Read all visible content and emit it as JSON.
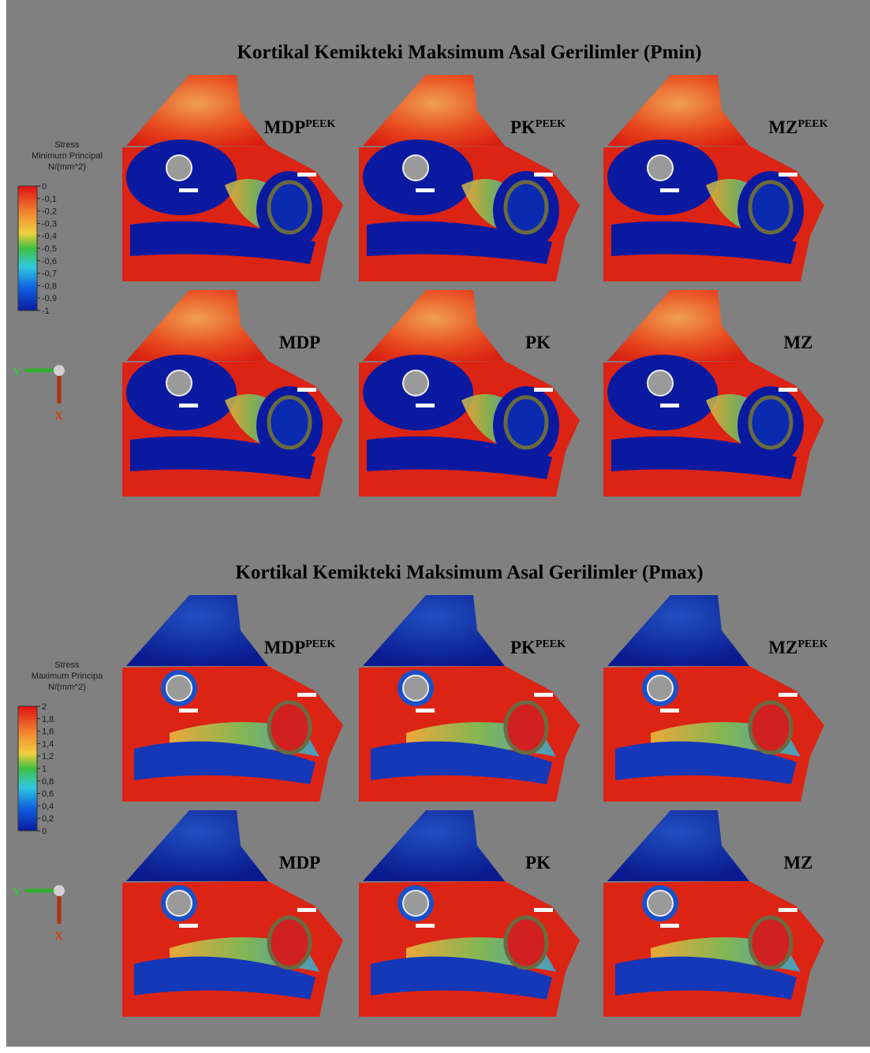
{
  "panels": [
    {
      "title": "Kortikal Kemikteki Maksimum Asal Gerilimler (Pmin)",
      "legend": {
        "title": [
          "Stress",
          "Minimum Principal",
          "N/(mm^2)"
        ],
        "ticks": [
          "0",
          "-0,1",
          "-0,2",
          "-0,3",
          "-0,4",
          "-0,5",
          "-0,6",
          "-0,7",
          "-0,8",
          "-0,9",
          "-1"
        ]
      },
      "axes": {
        "y": "Y",
        "x": "X"
      },
      "models": [
        {
          "name": "MDP",
          "sup": "PEEK"
        },
        {
          "name": "PK",
          "sup": "PEEK"
        },
        {
          "name": "MZ",
          "sup": "PEEK"
        },
        {
          "name": "MDP"
        },
        {
          "name": "PK"
        },
        {
          "name": "MZ"
        }
      ]
    },
    {
      "title": "Kortikal Kemikteki Maksimum Asal Gerilimler (Pmax)",
      "legend": {
        "title": [
          "Stress",
          "Maximum Principa",
          "N/(mm^2)"
        ],
        "ticks": [
          "2",
          "1,8",
          "1,6",
          "1,4",
          "1,2",
          "1",
          "0,8",
          "0,6",
          "0,4",
          "0,2",
          "0"
        ]
      },
      "axes": {
        "y": "Y",
        "x": "X"
      },
      "models": [
        {
          "name": "MDP",
          "sup": "PEEK"
        },
        {
          "name": "PK",
          "sup": "PEEK"
        },
        {
          "name": "MZ",
          "sup": "PEEK"
        },
        {
          "name": "MDP"
        },
        {
          "name": "PK"
        },
        {
          "name": "MZ"
        }
      ]
    }
  ]
}
